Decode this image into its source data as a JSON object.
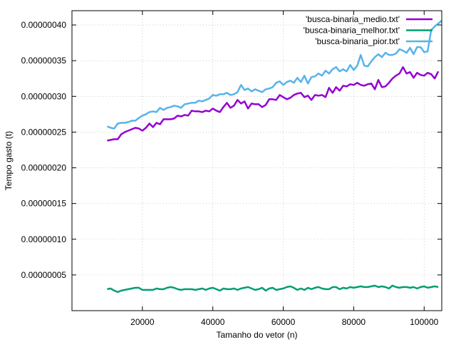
{
  "chart_data": {
    "type": "line",
    "xlabel": "Tamanho do vetor (n)",
    "ylabel": "Tempo gasto (t)",
    "xlim": [
      0,
      105000
    ],
    "ylim": [
      0.0,
      4.2e-07
    ],
    "xticks": [
      20000,
      40000,
      60000,
      80000,
      100000
    ],
    "yticks": [
      5e-08,
      1e-07,
      1.5e-07,
      2e-07,
      2.5e-07,
      3e-07,
      3.5e-07,
      4e-07
    ],
    "xtick_labels": [
      "20000",
      "40000",
      "60000",
      "80000",
      "100000"
    ],
    "ytick_labels": [
      "0.00000005",
      "0.00000010",
      "0.00000015",
      "0.00000020",
      "0.00000025",
      "0.00000030",
      "0.00000035",
      "0.00000040"
    ],
    "grid": true,
    "legend_position": "top-right",
    "x_start": 10000,
    "x_step": 1000,
    "series": [
      {
        "name": "'busca-binaria_medio.txt'",
        "color": "#9400d3",
        "values": [
          2.38e-07,
          2.39e-07,
          2.4e-07,
          2.4e-07,
          2.47e-07,
          2.5e-07,
          2.52e-07,
          2.54e-07,
          2.56e-07,
          2.55e-07,
          2.52e-07,
          2.56e-07,
          2.62e-07,
          2.57e-07,
          2.63e-07,
          2.61e-07,
          2.68e-07,
          2.68e-07,
          2.68e-07,
          2.69e-07,
          2.73e-07,
          2.72e-07,
          2.74e-07,
          2.73e-07,
          2.8e-07,
          2.79e-07,
          2.79e-07,
          2.78e-07,
          2.8e-07,
          2.79e-07,
          2.83e-07,
          2.8e-07,
          2.78e-07,
          2.85e-07,
          2.91e-07,
          2.84e-07,
          2.87e-07,
          2.95e-07,
          2.9e-07,
          2.93e-07,
          2.83e-07,
          2.9e-07,
          2.89e-07,
          2.89e-07,
          2.85e-07,
          2.88e-07,
          2.96e-07,
          2.96e-07,
          2.95e-07,
          3.02e-07,
          2.99e-07,
          2.96e-07,
          2.98e-07,
          3.02e-07,
          3.04e-07,
          3.05e-07,
          2.99e-07,
          3.01e-07,
          2.95e-07,
          3.02e-07,
          3.01e-07,
          3.02e-07,
          2.99e-07,
          3.12e-07,
          3.05e-07,
          3.13e-07,
          3.08e-07,
          3.15e-07,
          3.14e-07,
          3.17e-07,
          3.16e-07,
          3.19e-07,
          3.16e-07,
          3.15e-07,
          3.17e-07,
          3.18e-07,
          3.1e-07,
          3.23e-07,
          3.13e-07,
          3.14e-07,
          3.19e-07,
          3.25e-07,
          3.29e-07,
          3.32e-07,
          3.41e-07,
          3.32e-07,
          3.34e-07,
          3.26e-07,
          3.33e-07,
          3.3e-07,
          3.29e-07,
          3.33e-07,
          3.31e-07,
          3.25e-07,
          3.35e-07
        ]
      },
      {
        "name": "'busca-binaria_melhor.txt'",
        "color": "#009e73",
        "values": [
          3e-08,
          3.1e-08,
          2.8e-08,
          2.6e-08,
          2.8e-08,
          2.9e-08,
          3e-08,
          3.1e-08,
          3.2e-08,
          3.2e-08,
          2.9e-08,
          2.9e-08,
          2.9e-08,
          2.9e-08,
          3.1e-08,
          3e-08,
          3e-08,
          3.2e-08,
          3.3e-08,
          3.2e-08,
          3e-08,
          2.9e-08,
          3e-08,
          3e-08,
          3e-08,
          2.9e-08,
          3e-08,
          3.1e-08,
          2.9e-08,
          3.1e-08,
          3.2e-08,
          3e-08,
          2.8e-08,
          3.1e-08,
          3e-08,
          3e-08,
          3.1e-08,
          2.9e-08,
          3.1e-08,
          3.2e-08,
          3.3e-08,
          3.1e-08,
          2.9e-08,
          3e-08,
          3.2e-08,
          2.8e-08,
          3.1e-08,
          3.2e-08,
          2.9e-08,
          3e-08,
          3.1e-08,
          3.3e-08,
          3.4e-08,
          3.2e-08,
          2.9e-08,
          3.1e-08,
          2.9e-08,
          3.2e-08,
          3e-08,
          3.2e-08,
          3.3e-08,
          3.1e-08,
          3e-08,
          3e-08,
          3.3e-08,
          3.3e-08,
          3e-08,
          3.2e-08,
          3.1e-08,
          3.3e-08,
          3.2e-08,
          3.3e-08,
          3.4e-08,
          3.3e-08,
          3.3e-08,
          3.4e-08,
          3.5e-08,
          3.3e-08,
          3.4e-08,
          3.3e-08,
          3.1e-08,
          3.5e-08,
          3.3e-08,
          3.2e-08,
          3.3e-08,
          3.3e-08,
          3.2e-08,
          3.3e-08,
          3.1e-08,
          3.3e-08,
          3.4e-08,
          3.2e-08,
          3.3e-08,
          3.4e-08,
          3.3e-08
        ]
      },
      {
        "name": "'busca-binaria_pior.txt'",
        "color": "#56b4e9",
        "values": [
          2.58e-07,
          2.56e-07,
          2.55e-07,
          2.62e-07,
          2.63e-07,
          2.63e-07,
          2.64e-07,
          2.66e-07,
          2.66e-07,
          2.7e-07,
          2.73e-07,
          2.75e-07,
          2.78e-07,
          2.79e-07,
          2.78e-07,
          2.84e-07,
          2.81e-07,
          2.84e-07,
          2.85e-07,
          2.87e-07,
          2.86e-07,
          2.84e-07,
          2.89e-07,
          2.9e-07,
          2.91e-07,
          2.91e-07,
          2.94e-07,
          2.93e-07,
          2.95e-07,
          2.97e-07,
          3.02e-07,
          3.01e-07,
          3.03e-07,
          3.03e-07,
          3.05e-07,
          3.02e-07,
          3.03e-07,
          3.06e-07,
          3.16e-07,
          3.09e-07,
          3.11e-07,
          3.07e-07,
          3.1e-07,
          3.08e-07,
          3.06e-07,
          3.1e-07,
          3.11e-07,
          3.13e-07,
          3.19e-07,
          3.21e-07,
          3.16e-07,
          3.2e-07,
          3.22e-07,
          3.19e-07,
          3.26e-07,
          3.2e-07,
          3.29e-07,
          3.18e-07,
          3.27e-07,
          3.28e-07,
          3.32e-07,
          3.29e-07,
          3.36e-07,
          3.32e-07,
          3.38e-07,
          3.41e-07,
          3.35e-07,
          3.38e-07,
          3.35e-07,
          3.44e-07,
          3.37e-07,
          3.43e-07,
          3.58e-07,
          3.43e-07,
          3.42e-07,
          3.49e-07,
          3.55e-07,
          3.59e-07,
          3.55e-07,
          3.61e-07,
          3.58e-07,
          3.58e-07,
          3.6e-07,
          3.66e-07,
          3.64e-07,
          3.61e-07,
          3.68e-07,
          3.59e-07,
          3.69e-07,
          3.69e-07,
          3.62e-07,
          3.63e-07,
          3.93e-07,
          3.98e-07,
          4.02e-07,
          4.06e-07
        ]
      }
    ]
  }
}
